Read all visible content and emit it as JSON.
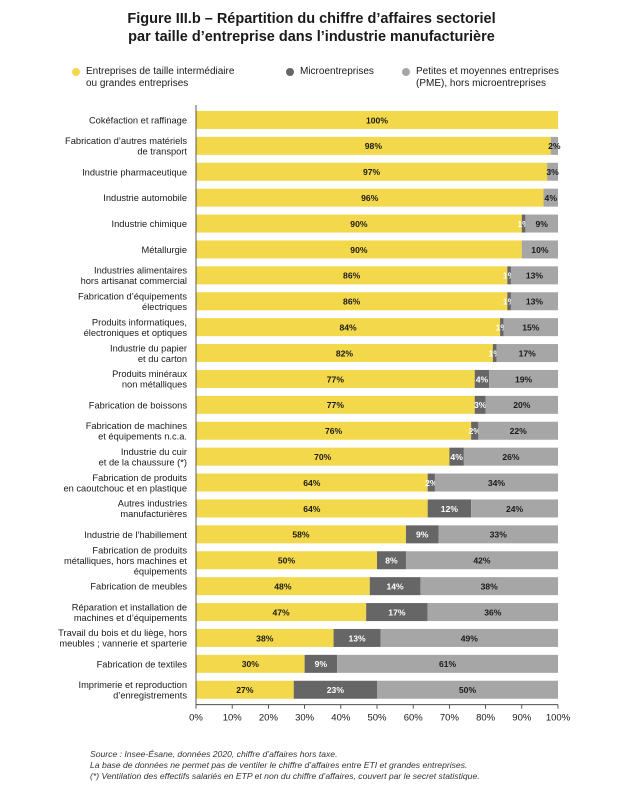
{
  "title_lines": [
    "Figure III.b – Répartition du chiffre d’affaires sectoriel",
    "par taille d’entreprise dans l’industrie manufacturière"
  ],
  "colors": {
    "eti_ge": "#f2d84a",
    "micro": "#666666",
    "pme": "#a6a6a6"
  },
  "legend": [
    {
      "key": "eti_ge",
      "label_lines": [
        "Entreprises de taille intermédiaire",
        "ou grandes entreprises"
      ]
    },
    {
      "key": "micro",
      "label_lines": [
        "Microentreprises"
      ]
    },
    {
      "key": "pme",
      "label_lines": [
        "Petites et moyennes entreprises",
        "(PME), hors microentreprises"
      ]
    }
  ],
  "chart_data": {
    "type": "bar",
    "orientation": "horizontal",
    "stacked": true,
    "xlim": [
      0,
      100
    ],
    "x_ticks": [
      "0%",
      "10%",
      "20%",
      "30%",
      "40%",
      "50%",
      "60%",
      "70%",
      "80%",
      "90%",
      "100%"
    ],
    "legend_position": "top",
    "grid": false,
    "categories": [
      [
        "Cokéfaction et raffinage"
      ],
      [
        "Fabrication d’autres matériels",
        "de transport"
      ],
      [
        "Industrie pharmaceutique"
      ],
      [
        "Industrie automobile"
      ],
      [
        "Industrie chimique"
      ],
      [
        "Métallurgie"
      ],
      [
        "Industries alimentaires",
        "hors artisanat commercial"
      ],
      [
        "Fabrication d’équipements",
        "électriques"
      ],
      [
        "Produits informatiques,",
        "électroniques et optiques"
      ],
      [
        "Industrie du papier",
        "et du carton"
      ],
      [
        "Produits minéraux",
        "non métalliques"
      ],
      [
        "Fabrication de boissons"
      ],
      [
        "Fabrication de machines",
        "et équipements n.c.a."
      ],
      [
        "Industrie du cuir",
        "et de la chaussure (*)"
      ],
      [
        "Fabrication de produits",
        "en caoutchouc et en plastique"
      ],
      [
        "Autres industries",
        "manufacturières"
      ],
      [
        "Industrie de l’habillement"
      ],
      [
        "Fabrication de produits",
        "métalliques, hors machines et",
        "équipements"
      ],
      [
        "Fabrication de meubles"
      ],
      [
        "Réparation et installation de",
        "machines et d’équipements"
      ],
      [
        "Travail du bois et du liège, hors",
        "meubles ; vannerie et sparterie"
      ],
      [
        "Fabrication de textiles"
      ],
      [
        "Imprimerie et reproduction",
        "d’enregistrements"
      ]
    ],
    "series": [
      {
        "key": "eti_ge",
        "name": "Entreprises de taille intermédiaire ou grandes entreprises",
        "values": [
          100,
          98,
          97,
          96,
          90,
          90,
          86,
          86,
          84,
          82,
          77,
          77,
          76,
          70,
          64,
          64,
          58,
          50,
          48,
          47,
          38,
          30,
          27
        ],
        "labels": [
          "100%",
          "98%",
          "97%",
          "96%",
          "90%",
          "90%",
          "86%",
          "86%",
          "84%",
          "82%",
          "77%",
          "77%",
          "76%",
          "70%",
          "64%",
          "64%",
          "58%",
          "50%",
          "48%",
          "47%",
          "38%",
          "30%",
          "27%"
        ]
      },
      {
        "key": "micro",
        "name": "Microentreprises",
        "values": [
          0,
          0,
          0,
          0,
          1,
          0,
          1,
          1,
          1,
          1,
          4,
          3,
          2,
          4,
          2,
          12,
          9,
          8,
          14,
          17,
          13,
          9,
          23
        ],
        "labels": [
          "",
          "",
          "",
          "",
          "1%",
          "",
          "1%",
          "1%",
          "1%",
          "1%",
          "4%",
          "3%",
          "2%",
          "4%",
          "2%",
          "12%",
          "9%",
          "8%",
          "14%",
          "17%",
          "13%",
          "9%",
          "23%"
        ]
      },
      {
        "key": "pme",
        "name": "Petites et moyennes entreprises (PME), hors microentreprises",
        "values": [
          0,
          2,
          3,
          4,
          9,
          10,
          13,
          13,
          15,
          17,
          19,
          20,
          22,
          26,
          34,
          24,
          33,
          42,
          38,
          36,
          49,
          61,
          50
        ],
        "labels": [
          "",
          "2%",
          "3%",
          "4%",
          "9%",
          "10%",
          "13%",
          "13%",
          "15%",
          "17%",
          "19%",
          "20%",
          "22%",
          "26%",
          "34%",
          "24%",
          "33%",
          "42%",
          "38%",
          "36%",
          "49%",
          "61%",
          "50%"
        ]
      }
    ]
  },
  "source_lines": [
    "Source : Insee-Ésane, données 2020, chiffre d’affaires hors taxe.",
    "La base de données ne permet pas de ventiler le chiffre d’affaires entre ETI et grandes entreprises.",
    "(*) Ventilation des effectifs salariés en ETP et non du chiffre d’affaires, couvert par le secret statistique."
  ]
}
